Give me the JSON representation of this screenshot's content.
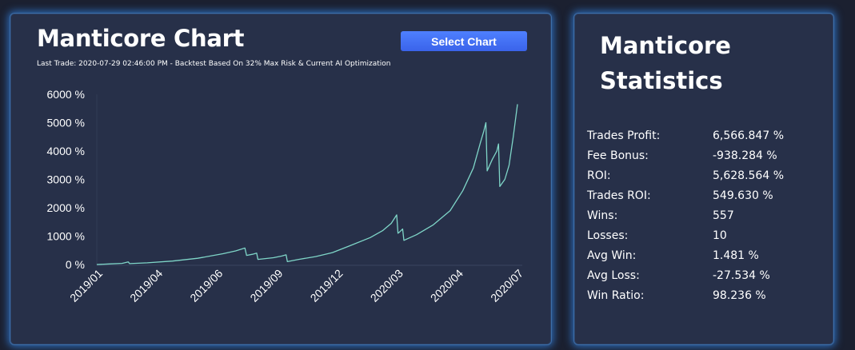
{
  "chart_panel": {
    "title": "Manticore Chart",
    "subtitle": "Last Trade: 2020-07-29 02:46:00 PM - Backtest Based On 32% Max Risk & Current AI Optimization",
    "select_button_label": "Select Chart"
  },
  "stats_panel": {
    "title_line1": "Manticore",
    "title_line2": "Statistics",
    "rows": [
      {
        "label": "Trades Profit:",
        "value": "6,566.847 %"
      },
      {
        "label": "Fee Bonus:",
        "value": "-938.284 %"
      },
      {
        "label": "ROI:",
        "value": "5,628.564 %"
      },
      {
        "label": "Trades ROI:",
        "value": "549.630 %"
      },
      {
        "label": "Wins:",
        "value": "557"
      },
      {
        "label": "Losses:",
        "value": "10"
      },
      {
        "label": "Avg Win:",
        "value": "1.481 %"
      },
      {
        "label": "Avg Loss:",
        "value": "-27.534 %"
      },
      {
        "label": "Win Ratio:",
        "value": "98.236 %"
      }
    ]
  },
  "colors": {
    "background": "#1b2030",
    "panel": "#273049",
    "panel_glow": "#3484e6",
    "line": "#7fd6c8",
    "button": "#4470f5"
  },
  "chart_data": {
    "type": "line",
    "title": "Manticore Chart",
    "ylim": [
      0,
      6000
    ],
    "y_ticks": [
      "0 %",
      "1000 %",
      "2000 %",
      "3000 %",
      "4000 %",
      "5000 %",
      "6000 %"
    ],
    "y_tick_values": [
      0,
      1000,
      2000,
      3000,
      4000,
      5000,
      6000
    ],
    "x_tick_labels": [
      "2019/01",
      "2019/04",
      "2019/06",
      "2019/09",
      "2019/12",
      "2020/03",
      "2020/04",
      "2020/07"
    ],
    "grid": false,
    "series": [
      {
        "values": [
          [
            0.0,
            0
          ],
          [
            0.03,
            20
          ],
          [
            0.06,
            40
          ],
          [
            0.075,
            90
          ],
          [
            0.078,
            30
          ],
          [
            0.12,
            60
          ],
          [
            0.18,
            120
          ],
          [
            0.24,
            220
          ],
          [
            0.3,
            380
          ],
          [
            0.33,
            480
          ],
          [
            0.352,
            580
          ],
          [
            0.356,
            320
          ],
          [
            0.37,
            360
          ],
          [
            0.38,
            400
          ],
          [
            0.383,
            180
          ],
          [
            0.42,
            240
          ],
          [
            0.44,
            300
          ],
          [
            0.45,
            340
          ],
          [
            0.453,
            100
          ],
          [
            0.48,
            180
          ],
          [
            0.52,
            280
          ],
          [
            0.56,
            420
          ],
          [
            0.6,
            650
          ],
          [
            0.65,
            950
          ],
          [
            0.68,
            1200
          ],
          [
            0.7,
            1450
          ],
          [
            0.713,
            1750
          ],
          [
            0.716,
            1100
          ],
          [
            0.72,
            1150
          ],
          [
            0.727,
            1250
          ],
          [
            0.73,
            850
          ],
          [
            0.76,
            1050
          ],
          [
            0.8,
            1400
          ],
          [
            0.84,
            1900
          ],
          [
            0.87,
            2600
          ],
          [
            0.895,
            3400
          ],
          [
            0.912,
            4300
          ],
          [
            0.92,
            4700
          ],
          [
            0.925,
            5000
          ],
          [
            0.928,
            3300
          ],
          [
            0.94,
            3700
          ],
          [
            0.951,
            4000
          ],
          [
            0.955,
            4250
          ],
          [
            0.958,
            2750
          ],
          [
            0.97,
            3000
          ],
          [
            0.98,
            3500
          ],
          [
            0.99,
            4500
          ],
          [
            1.0,
            5650
          ]
        ]
      }
    ]
  }
}
